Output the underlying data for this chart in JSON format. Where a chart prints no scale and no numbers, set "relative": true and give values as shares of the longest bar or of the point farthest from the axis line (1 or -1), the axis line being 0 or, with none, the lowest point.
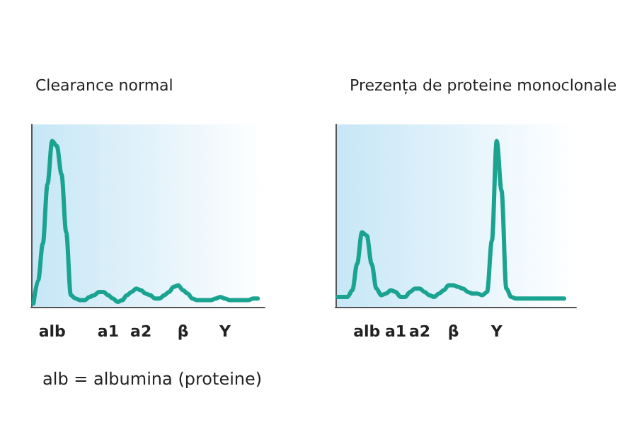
{
  "chart_data": [
    {
      "type": "line",
      "title": "Clearance normal",
      "relative": true,
      "categories": [
        null,
        null,
        null,
        null,
        "alb",
        null,
        null,
        null,
        null,
        null,
        null,
        null,
        null,
        null,
        null,
        null,
        "a1",
        null,
        null,
        null,
        null,
        null,
        null,
        "a2",
        null,
        null,
        null,
        null,
        null,
        null,
        null,
        null,
        "β",
        null,
        null,
        null,
        null,
        null,
        null,
        null,
        null,
        "Y",
        null,
        null,
        null,
        null,
        null,
        null,
        null,
        null
      ],
      "series": [
        {
          "color": "#1aa391",
          "values": [
            0.02,
            0.16,
            0.38,
            0.74,
            1.0,
            0.97,
            0.8,
            0.45,
            0.07,
            0.05,
            0.04,
            0.04,
            0.06,
            0.07,
            0.09,
            0.09,
            0.07,
            0.05,
            0.03,
            0.04,
            0.07,
            0.09,
            0.11,
            0.1,
            0.08,
            0.07,
            0.05,
            0.05,
            0.07,
            0.09,
            0.12,
            0.13,
            0.1,
            0.08,
            0.05,
            0.04,
            0.04,
            0.04,
            0.04,
            0.05,
            0.06,
            0.05,
            0.04,
            0.04,
            0.04,
            0.04,
            0.04,
            0.05,
            0.05,
            null
          ]
        }
      ],
      "annotations": [
        "alb = albumina (proteine)"
      ]
    },
    {
      "type": "line",
      "title": "Prezența de proteine monoclonale",
      "relative": true,
      "categories": [
        null,
        null,
        null,
        null,
        null,
        null,
        "alb",
        null,
        null,
        null,
        null,
        null,
        "a1",
        null,
        null,
        null,
        null,
        "a2",
        null,
        null,
        null,
        null,
        null,
        null,
        "β",
        null,
        null,
        null,
        null,
        null,
        null,
        null,
        null,
        "Y",
        null,
        null,
        null,
        null,
        null,
        null,
        null,
        null,
        null,
        null,
        null,
        null,
        null,
        null,
        null,
        null
      ],
      "series": [
        {
          "color": "#1aa391",
          "values": [
            0.06,
            0.06,
            0.06,
            0.1,
            0.26,
            0.45,
            0.43,
            0.26,
            0.11,
            0.07,
            0.08,
            0.1,
            0.09,
            0.06,
            0.06,
            0.09,
            0.11,
            0.11,
            0.09,
            0.07,
            0.06,
            0.08,
            0.1,
            0.13,
            0.13,
            0.12,
            0.11,
            0.09,
            0.08,
            0.08,
            0.07,
            0.09,
            0.4,
            1.0,
            0.7,
            0.11,
            0.06,
            0.05,
            0.05,
            0.05,
            0.05,
            0.05,
            0.05,
            0.05,
            0.05,
            0.05,
            0.05,
            0.05,
            null,
            null
          ]
        }
      ]
    }
  ]
}
